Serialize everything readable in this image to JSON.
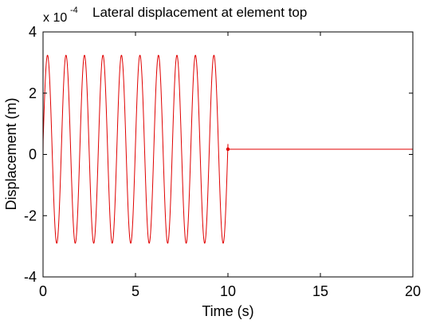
{
  "chart_data": {
    "type": "line",
    "title": "Lateral displacement at element top",
    "xlabel": "Time (s)",
    "ylabel": "Displacement (m)",
    "y_multiplier": "x 10",
    "y_exponent": "-4",
    "xlim": [
      0,
      20
    ],
    "ylim": [
      -4,
      4
    ],
    "xticks": [
      0,
      5,
      10,
      15,
      20
    ],
    "yticks": [
      -4,
      -2,
      0,
      2,
      4
    ],
    "grid": false,
    "series": [
      {
        "color": "#e00000",
        "forced_phase": {
          "t_start": 0,
          "t_end": 10,
          "frequency_hz": 1,
          "mean": 0.17,
          "amplitude": 3.07,
          "start_value": 0,
          "peak_max": 3.24,
          "peak_min": -2.9
        },
        "free_phase": {
          "t_start": 10,
          "t_end": 20,
          "value": 0.17
        }
      }
    ]
  }
}
